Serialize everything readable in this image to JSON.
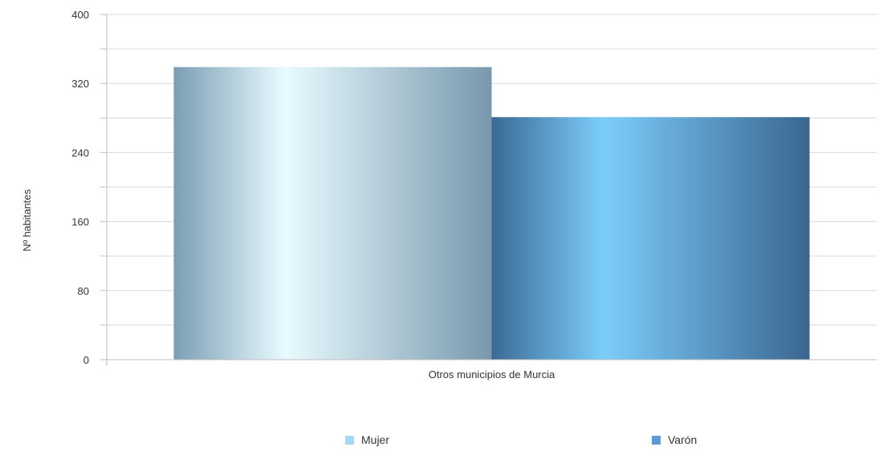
{
  "chart_data": {
    "type": "bar",
    "categories": [
      "Otros municipios de Murcia"
    ],
    "series": [
      {
        "name": "Mujer",
        "values": [
          339
        ],
        "color": "#a9d8f5"
      },
      {
        "name": "Varón",
        "values": [
          281
        ],
        "color": "#5b9bd5"
      }
    ],
    "xlabel": "",
    "ylabel": "Nº habitantes",
    "ylim": [
      0,
      400
    ],
    "yticks": [
      0,
      80,
      160,
      240,
      320,
      400
    ],
    "grid": true,
    "legend_position": "bottom"
  }
}
